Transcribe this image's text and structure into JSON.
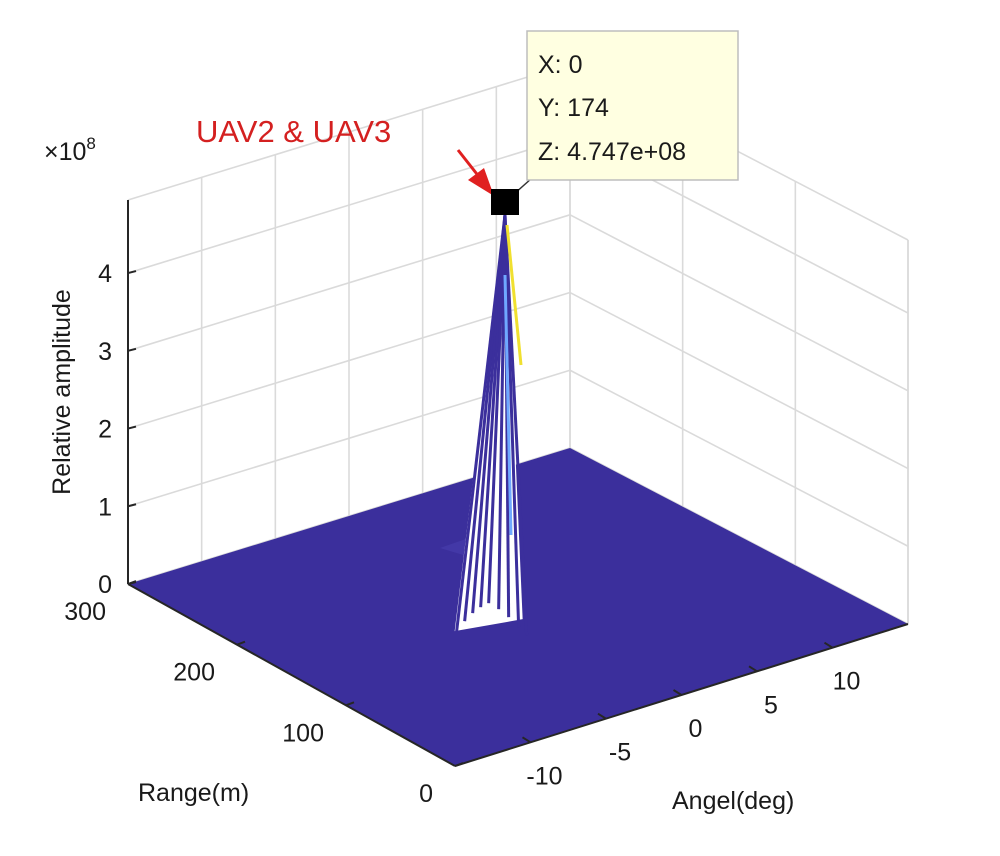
{
  "chart_data": {
    "type": "surface",
    "title": "",
    "xlabel": "Angel(deg)",
    "ylabel": "Range(m)",
    "zlabel": "Relative amplitude",
    "z_exponent_label": "×10",
    "z_exponent_power": "8",
    "xlim": [
      -15,
      15
    ],
    "ylim": [
      0,
      300
    ],
    "zlim": [
      0,
      4.747
    ],
    "x_ticks": [
      -10,
      -5,
      0,
      5,
      10
    ],
    "x_tick_labels": [
      "-10",
      "-5",
      "0",
      "5",
      "10"
    ],
    "y_ticks": [
      0,
      100,
      200,
      300
    ],
    "y_tick_labels": [
      "0",
      "100",
      "200",
      "300"
    ],
    "z_ticks": [
      0,
      1,
      2,
      3,
      4
    ],
    "z_tick_labels": [
      "0",
      "1",
      "2",
      "3",
      "4"
    ],
    "surface_color": "#3b2f9c",
    "peak": {
      "x": 0,
      "y": 174,
      "z": 474700000.0
    },
    "datatip": {
      "x_line": "X: 0",
      "y_line": "Y: 174",
      "z_line": "Z: 4.747e+08"
    },
    "annotation": {
      "text": "UAV2 & UAV3",
      "color": "#d42020"
    }
  }
}
